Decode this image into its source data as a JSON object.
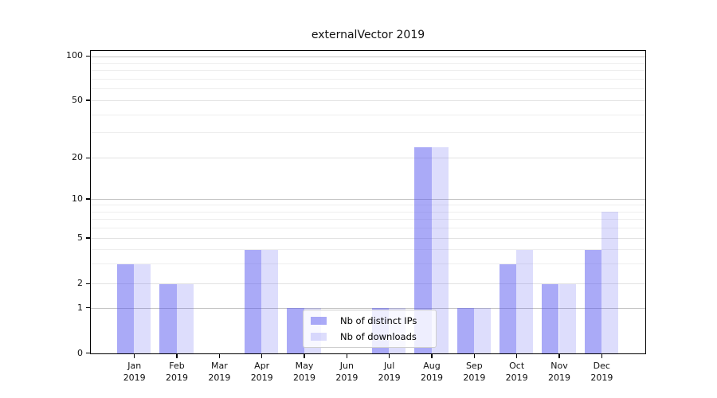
{
  "chart_data": {
    "type": "bar",
    "title": "externalVector 2019",
    "categories": [
      "Jan",
      "Feb",
      "Mar",
      "Apr",
      "May",
      "Jun",
      "Jul",
      "Aug",
      "Sep",
      "Oct",
      "Nov",
      "Dec"
    ],
    "category_year": "2019",
    "series": [
      {
        "name": "Nb of distinct IPs",
        "values": [
          3,
          2,
          0,
          4,
          1,
          0,
          1,
          24,
          1,
          3,
          2,
          4
        ],
        "fill_hex": "#aaaaf7",
        "color_rgba": "rgba(85,85,240,0.5)"
      },
      {
        "name": "Nb of downloads",
        "values": [
          3,
          2,
          0,
          4,
          1,
          0,
          1,
          24,
          1,
          4,
          2,
          8
        ],
        "fill_hex": "#dcdcfb",
        "color_rgba": "rgba(85,85,240,0.2)"
      }
    ],
    "y_axis": {
      "scale": "log-like above 1, linear 0-1",
      "ticks": [
        0,
        1,
        2,
        5,
        10,
        20,
        50,
        100
      ],
      "major_gridlines": [
        1,
        10,
        100
      ],
      "labeled_gridlines": [
        2,
        5,
        20,
        50
      ],
      "minor_gridlines": [
        3,
        4,
        6,
        7,
        8,
        9,
        30,
        40,
        60,
        70,
        80,
        90
      ],
      "ylim": [
        0,
        110
      ]
    },
    "x_axis": {
      "label_format": "month over year, two lines"
    },
    "grid": true,
    "legend_position": "lower center inside plot",
    "background_color": "#ffffff",
    "spine_color": "#000000"
  }
}
